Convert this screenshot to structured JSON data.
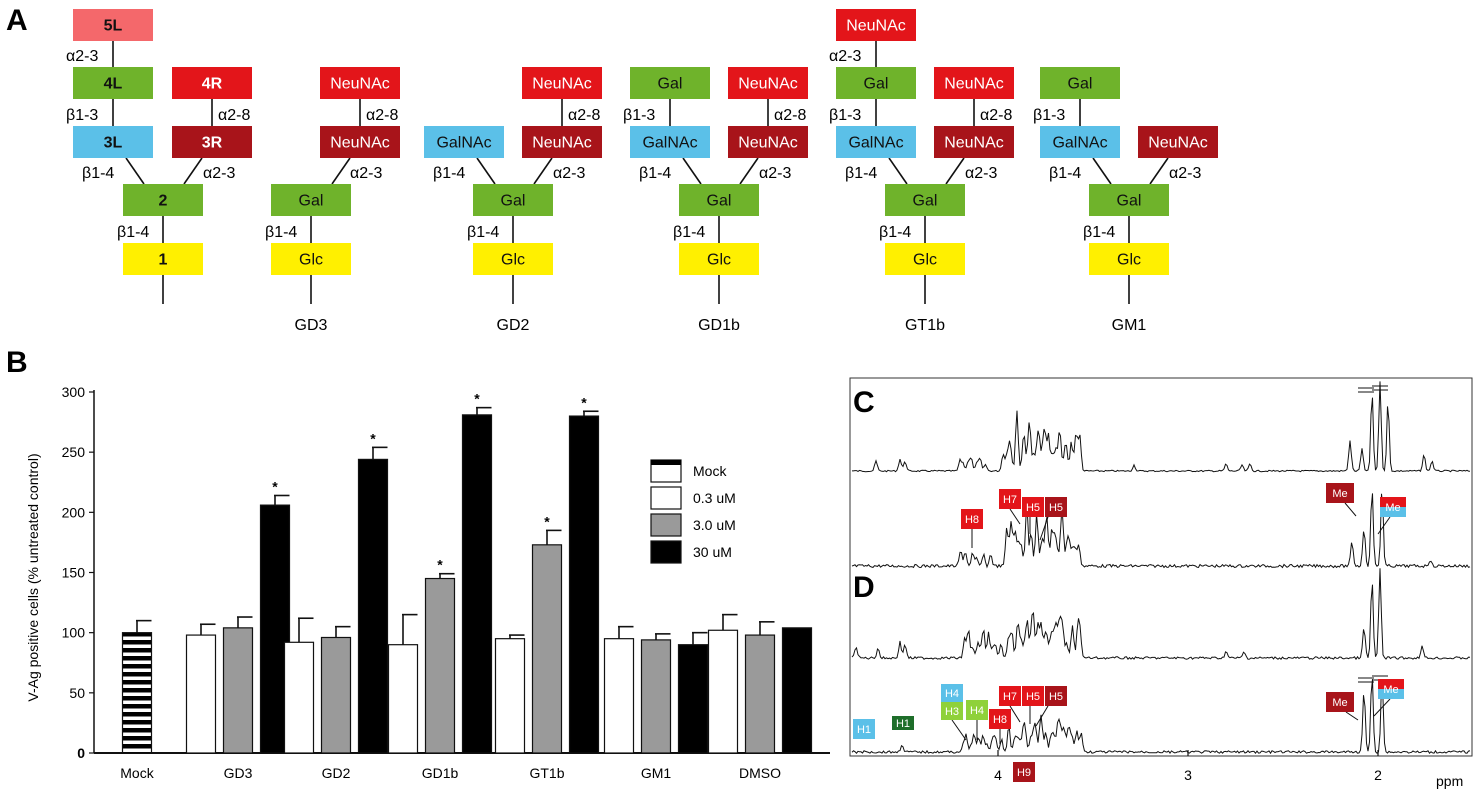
{
  "panels": {
    "A": "A",
    "B": "B",
    "C": "C",
    "D": "D"
  },
  "colors": {
    "green": "#6fb32b",
    "blue": "#5bc0e8",
    "yellow": "#fff000",
    "red": "#e3151a",
    "darkred": "#a8141a",
    "pink": "#f4686b",
    "darkgreen": "#1e6e2a",
    "lightgreen": "#8fd13a"
  },
  "glycans": [
    {
      "id": "schematic",
      "label": "",
      "nodes": [
        {
          "key": "n5L",
          "text": "5L",
          "color": "pink",
          "bold": true
        },
        {
          "key": "n4L",
          "text": "4L",
          "color": "green",
          "bold": true
        },
        {
          "key": "n4R",
          "text": "4R",
          "color": "red",
          "bold": true
        },
        {
          "key": "n3L",
          "text": "3L",
          "color": "blue",
          "bold": true
        },
        {
          "key": "n3R",
          "text": "3R",
          "color": "darkred",
          "bold": true
        },
        {
          "key": "n2",
          "text": "2",
          "color": "green",
          "bold": true
        },
        {
          "key": "n1",
          "text": "1",
          "color": "yellow",
          "bold": true
        }
      ],
      "links": [
        "α2-3",
        "β1-3",
        "α2-8",
        "β1-4",
        "α2-3",
        "β1-4"
      ]
    },
    {
      "id": "GD3",
      "label": "GD3",
      "nodes": [
        {
          "key": "n4R",
          "text": "NeuNAc",
          "color": "red"
        },
        {
          "key": "n3R",
          "text": "NeuNAc",
          "color": "darkred"
        },
        {
          "key": "n2",
          "text": "Gal",
          "color": "green"
        },
        {
          "key": "n1",
          "text": "Glc",
          "color": "yellow"
        }
      ],
      "links": [
        "α2-8",
        "α2-3",
        "β1-4"
      ]
    },
    {
      "id": "GD2",
      "label": "GD2",
      "nodes": [
        {
          "key": "n4R",
          "text": "NeuNAc",
          "color": "red"
        },
        {
          "key": "n3L",
          "text": "GalNAc",
          "color": "blue"
        },
        {
          "key": "n3R",
          "text": "NeuNAc",
          "color": "darkred"
        },
        {
          "key": "n2",
          "text": "Gal",
          "color": "green"
        },
        {
          "key": "n1",
          "text": "Glc",
          "color": "yellow"
        }
      ],
      "links": [
        "α2-8",
        "β1-4",
        "α2-3",
        "β1-4"
      ]
    },
    {
      "id": "GD1b",
      "label": "GD1b",
      "nodes": [
        {
          "key": "n4L",
          "text": "Gal",
          "color": "green"
        },
        {
          "key": "n4R",
          "text": "NeuNAc",
          "color": "red"
        },
        {
          "key": "n3L",
          "text": "GalNAc",
          "color": "blue"
        },
        {
          "key": "n3R",
          "text": "NeuNAc",
          "color": "darkred"
        },
        {
          "key": "n2",
          "text": "Gal",
          "color": "green"
        },
        {
          "key": "n1",
          "text": "Glc",
          "color": "yellow"
        }
      ],
      "links": [
        "β1-3",
        "α2-8",
        "β1-4",
        "α2-3",
        "β1-4"
      ]
    },
    {
      "id": "GT1b",
      "label": "GT1b",
      "nodes": [
        {
          "key": "n5L",
          "text": "NeuNAc",
          "color": "red"
        },
        {
          "key": "n4L",
          "text": "Gal",
          "color": "green"
        },
        {
          "key": "n4R",
          "text": "NeuNAc",
          "color": "red"
        },
        {
          "key": "n3L",
          "text": "GalNAc",
          "color": "blue"
        },
        {
          "key": "n3R",
          "text": "NeuNAc",
          "color": "darkred"
        },
        {
          "key": "n2",
          "text": "Gal",
          "color": "green"
        },
        {
          "key": "n1",
          "text": "Glc",
          "color": "yellow"
        }
      ],
      "links": [
        "α2-3",
        "β1-3",
        "α2-8",
        "β1-4",
        "α2-3",
        "β1-4"
      ]
    },
    {
      "id": "GM1",
      "label": "GM1",
      "nodes": [
        {
          "key": "n4L",
          "text": "Gal",
          "color": "green"
        },
        {
          "key": "n3L",
          "text": "GalNAc",
          "color": "blue"
        },
        {
          "key": "n3R",
          "text": "NeuNAc",
          "color": "darkred"
        },
        {
          "key": "n2",
          "text": "Gal",
          "color": "green"
        },
        {
          "key": "n1",
          "text": "Glc",
          "color": "yellow"
        }
      ],
      "links": [
        "β1-3",
        "β1-4",
        "α2-3",
        "β1-4"
      ]
    }
  ],
  "chart_data": {
    "type": "bar",
    "ylabel": "V-Ag positive cells (% untreated control)",
    "ylim": [
      0,
      300
    ],
    "yticks": [
      0,
      50,
      100,
      150,
      200,
      250,
      300
    ],
    "categories": [
      "Mock",
      "GD3",
      "GD2",
      "GD1b",
      "GT1b",
      "GM1",
      "DMSO"
    ],
    "legend": {
      "position": "right",
      "entries": [
        "Mock",
        "0.3 uM",
        "3.0 uM",
        "30 uM"
      ]
    },
    "series": [
      {
        "name": "Mock",
        "values": [
          100,
          null,
          null,
          null,
          null,
          null,
          null
        ],
        "errors": [
          10,
          null,
          null,
          null,
          null,
          null,
          null
        ],
        "sig": [
          false,
          false,
          false,
          false,
          false,
          false,
          false
        ]
      },
      {
        "name": "0.3 uM",
        "values": [
          null,
          98,
          92,
          90,
          95,
          95,
          102
        ],
        "errors": [
          null,
          9,
          20,
          25,
          3,
          10,
          13
        ],
        "sig": [
          false,
          false,
          false,
          false,
          false,
          false,
          false
        ]
      },
      {
        "name": "3.0 uM",
        "values": [
          null,
          104,
          96,
          145,
          173,
          94,
          98
        ],
        "errors": [
          null,
          9,
          9,
          4,
          12,
          5,
          11
        ],
        "sig": [
          false,
          false,
          false,
          true,
          true,
          false,
          false
        ]
      },
      {
        "name": "30 uM",
        "values": [
          null,
          206,
          244,
          281,
          280,
          90,
          104
        ],
        "errors": [
          null,
          8,
          10,
          6,
          4,
          10,
          null
        ],
        "sig": [
          false,
          true,
          true,
          true,
          true,
          false,
          false
        ]
      }
    ],
    "sig_label": "*"
  },
  "nmr": {
    "xlabel": "ppm",
    "xticks": [
      {
        "value": 4,
        "label": "4"
      },
      {
        "value": 3,
        "label": "3"
      },
      {
        "value": 2,
        "label": "2"
      }
    ],
    "labels": {
      "C": [
        {
          "text": "H8",
          "color": "red"
        },
        {
          "text": "H7",
          "color": "red"
        },
        {
          "text": "H5",
          "color": "red"
        },
        {
          "text": "H5",
          "color": "darkred"
        },
        {
          "text": "Me",
          "color": "darkred"
        },
        {
          "text": "Me",
          "color": "red"
        }
      ],
      "D": [
        {
          "text": "H1",
          "color": "blue"
        },
        {
          "text": "H1",
          "color": "darkgreen"
        },
        {
          "text": "H4",
          "color": "blue"
        },
        {
          "text": "H3",
          "color": "lightgreen"
        },
        {
          "text": "H4",
          "color": "lightgreen"
        },
        {
          "text": "H8",
          "color": "red"
        },
        {
          "text": "H7",
          "color": "red"
        },
        {
          "text": "H5",
          "color": "red"
        },
        {
          "text": "H5",
          "color": "darkred"
        },
        {
          "text": "H9",
          "color": "darkred"
        },
        {
          "text": "Me",
          "color": "darkred"
        },
        {
          "text": "Me",
          "color": "red"
        }
      ]
    }
  }
}
